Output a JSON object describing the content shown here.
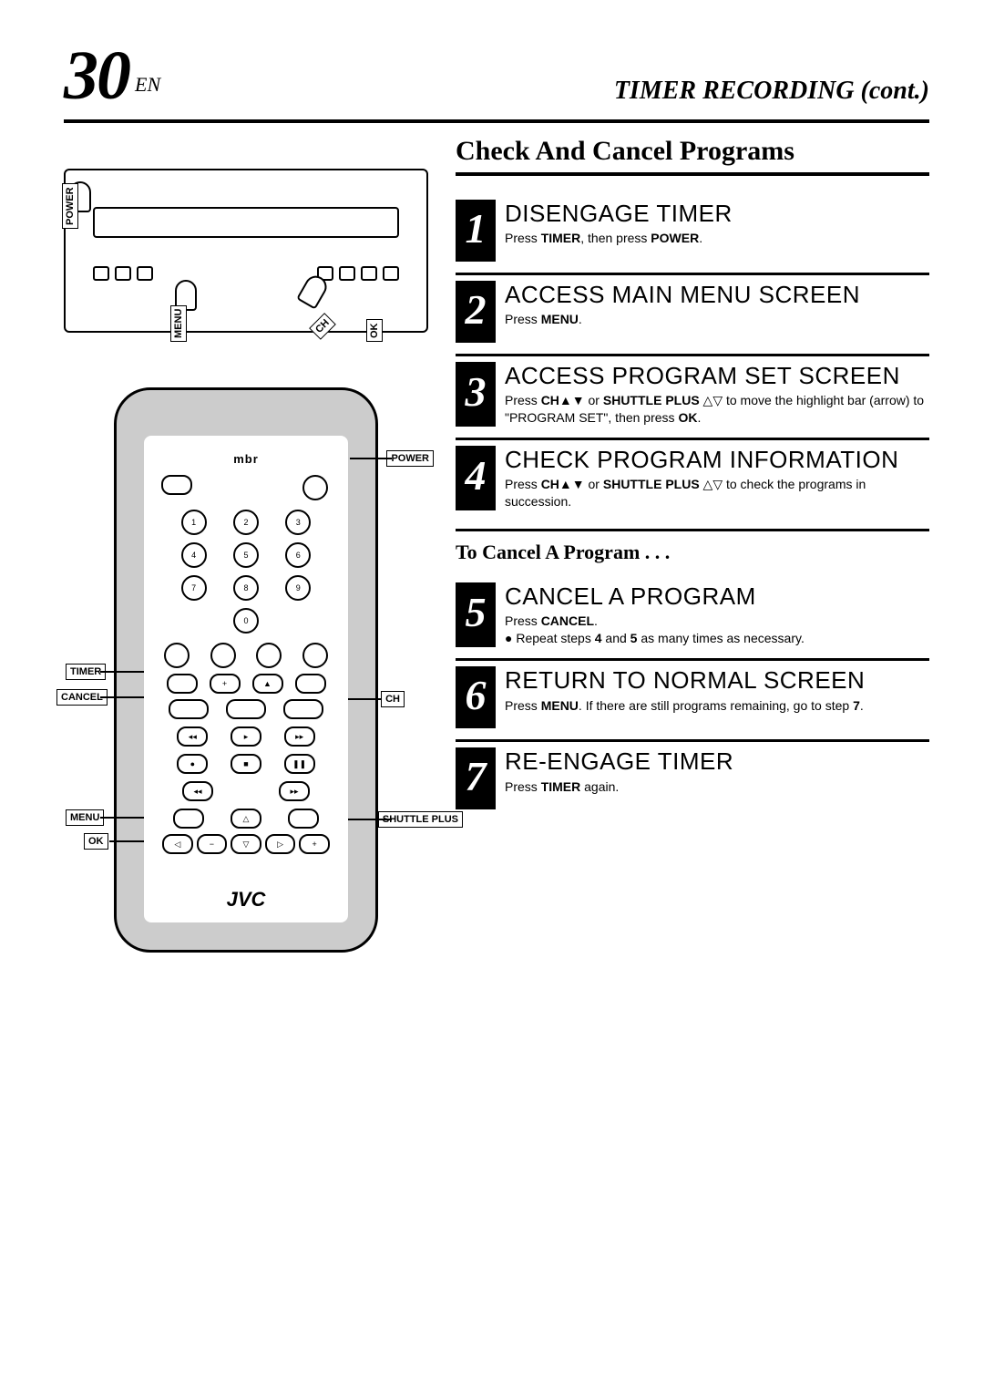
{
  "page_number": "30",
  "page_lang": "EN",
  "header_title": "TIMER RECORDING (cont.)",
  "section_title": "Check And Cancel Programs",
  "sub_section_title": "To Cancel A Program . . .",
  "steps": [
    {
      "num": "1",
      "title": "DISENGAGE TIMER",
      "desc": "Press <b>TIMER</b>, then press <b>POWER</b>."
    },
    {
      "num": "2",
      "title": "ACCESS MAIN MENU SCREEN",
      "desc": "Press <b>MENU</b>."
    },
    {
      "num": "3",
      "title": "ACCESS PROGRAM SET SCREEN",
      "desc": "Press <b>CH</b>▲▼ or <b>SHUTTLE PLUS</b> △▽ to move the highlight bar (arrow) to \"PROGRAM SET\", then press <b>OK</b>."
    },
    {
      "num": "4",
      "title": "CHECK PROGRAM INFORMATION",
      "desc": "Press <b>CH</b>▲▼ or <b>SHUTTLE PLUS</b> △▽ to check the programs in succession."
    }
  ],
  "cancel_steps": [
    {
      "num": "5",
      "title": "CANCEL A PROGRAM",
      "desc": "Press <b>CANCEL</b>.<br>● Repeat steps <b>4</b> and <b>5</b> as many times as necessary."
    },
    {
      "num": "6",
      "title": "RETURN TO NORMAL SCREEN",
      "desc": "Press <b>MENU</b>. If there are still programs remaining, go to step <b>7</b>."
    },
    {
      "num": "7",
      "title": "RE-ENGAGE TIMER",
      "desc": "Press <b>TIMER</b> again."
    }
  ],
  "vcr_labels": {
    "power": "POWER",
    "menu": "MENU",
    "ok": "OK",
    "ch": "CH"
  },
  "remote": {
    "brand_top": "mbr",
    "brand_logo": "JVC",
    "labels": {
      "power": "POWER",
      "timer": "TIMER",
      "cancel": "CANCEL",
      "ch": "CH",
      "menu": "MENU",
      "ok": "OK",
      "shuttle": "SHUTTLE PLUS"
    },
    "keypad": [
      "1",
      "2",
      "3",
      "4",
      "5",
      "6",
      "7",
      "8",
      "9",
      "0"
    ]
  }
}
